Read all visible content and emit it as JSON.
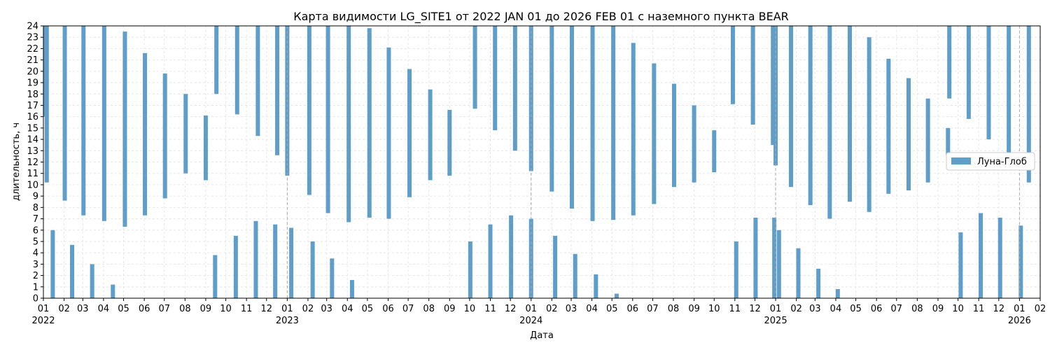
{
  "chart_data": {
    "type": "area",
    "title": "Карта видимости LG_SITE1 от 2022 JAN 01 до 2026 FEB 01 с наземного пункта BEAR",
    "xlabel": "Дата",
    "ylabel": "длительность, ч",
    "xlim": [
      "2022-01-01",
      "2026-02-01"
    ],
    "ylim": [
      0,
      24
    ],
    "y_ticks": [
      0,
      1,
      2,
      3,
      4,
      5,
      6,
      7,
      8,
      9,
      10,
      11,
      12,
      13,
      14,
      15,
      16,
      17,
      18,
      19,
      20,
      21,
      22,
      23,
      24
    ],
    "x_ticks": [
      {
        "date": "2022-01-01",
        "label": "01",
        "year": "2022"
      },
      {
        "date": "2022-02-01",
        "label": "02"
      },
      {
        "date": "2022-03-01",
        "label": "03"
      },
      {
        "date": "2022-04-01",
        "label": "04"
      },
      {
        "date": "2022-05-01",
        "label": "05"
      },
      {
        "date": "2022-06-01",
        "label": "06"
      },
      {
        "date": "2022-07-01",
        "label": "07"
      },
      {
        "date": "2022-08-01",
        "label": "08"
      },
      {
        "date": "2022-09-01",
        "label": "09"
      },
      {
        "date": "2022-10-01",
        "label": "10"
      },
      {
        "date": "2022-11-01",
        "label": "11"
      },
      {
        "date": "2022-12-01",
        "label": "12"
      },
      {
        "date": "2023-01-01",
        "label": "01",
        "year": "2023"
      },
      {
        "date": "2023-02-01",
        "label": "02"
      },
      {
        "date": "2023-03-01",
        "label": "03"
      },
      {
        "date": "2023-04-01",
        "label": "04"
      },
      {
        "date": "2023-05-01",
        "label": "05"
      },
      {
        "date": "2023-06-01",
        "label": "06"
      },
      {
        "date": "2023-07-01",
        "label": "07"
      },
      {
        "date": "2023-08-01",
        "label": "08"
      },
      {
        "date": "2023-09-01",
        "label": "09"
      },
      {
        "date": "2023-10-01",
        "label": "10"
      },
      {
        "date": "2023-11-01",
        "label": "11"
      },
      {
        "date": "2023-12-01",
        "label": "12"
      },
      {
        "date": "2024-01-01",
        "label": "01",
        "year": "2024"
      },
      {
        "date": "2024-02-01",
        "label": "02"
      },
      {
        "date": "2024-03-01",
        "label": "03"
      },
      {
        "date": "2024-04-01",
        "label": "04"
      },
      {
        "date": "2024-05-01",
        "label": "05"
      },
      {
        "date": "2024-06-01",
        "label": "06"
      },
      {
        "date": "2024-07-01",
        "label": "07"
      },
      {
        "date": "2024-08-01",
        "label": "08"
      },
      {
        "date": "2024-09-01",
        "label": "09"
      },
      {
        "date": "2024-10-01",
        "label": "10"
      },
      {
        "date": "2024-11-01",
        "label": "11"
      },
      {
        "date": "2024-12-01",
        "label": "12"
      },
      {
        "date": "2025-01-01",
        "label": "01",
        "year": "2025"
      },
      {
        "date": "2025-02-01",
        "label": "02"
      },
      {
        "date": "2025-03-01",
        "label": "03"
      },
      {
        "date": "2025-04-01",
        "label": "04"
      },
      {
        "date": "2025-05-01",
        "label": "05"
      },
      {
        "date": "2025-06-01",
        "label": "06"
      },
      {
        "date": "2025-07-01",
        "label": "07"
      },
      {
        "date": "2025-08-01",
        "label": "08"
      },
      {
        "date": "2025-09-01",
        "label": "09"
      },
      {
        "date": "2025-10-01",
        "label": "10"
      },
      {
        "date": "2025-11-01",
        "label": "11"
      },
      {
        "date": "2025-12-01",
        "label": "12"
      },
      {
        "date": "2026-01-01",
        "label": "01",
        "year": "2026"
      },
      {
        "date": "2026-02-01",
        "label": "02"
      }
    ],
    "grid": true,
    "legend": {
      "position": "center-right"
    },
    "series": [
      {
        "name": "Луна-Глоб",
        "color": "#5f9ec9",
        "visibility_windows_hours": [
          {
            "date": "2022-01-04",
            "start": 16.0,
            "end": 24
          },
          {
            "date": "2022-01-06",
            "start": 10.2,
            "end": 24
          },
          {
            "date": "2022-01-15",
            "start": 0,
            "end": 6.0
          },
          {
            "date": "2022-02-02",
            "start": 8.6,
            "end": 24
          },
          {
            "date": "2022-02-13",
            "start": 0,
            "end": 4.7
          },
          {
            "date": "2022-03-02",
            "start": 7.3,
            "end": 24
          },
          {
            "date": "2022-03-15",
            "start": 0,
            "end": 3.0
          },
          {
            "date": "2022-04-02",
            "start": 6.8,
            "end": 24
          },
          {
            "date": "2022-04-15",
            "start": 0,
            "end": 1.2
          },
          {
            "date": "2022-05-03",
            "start": 6.3,
            "end": 23.5
          },
          {
            "date": "2022-06-02",
            "start": 7.3,
            "end": 21.6
          },
          {
            "date": "2022-07-02",
            "start": 8.8,
            "end": 19.8
          },
          {
            "date": "2022-08-02",
            "start": 11.0,
            "end": 18.0
          },
          {
            "date": "2022-09-01",
            "start": 10.4,
            "end": 16.1
          },
          {
            "date": "2022-09-15",
            "start": 0,
            "end": 3.8
          },
          {
            "date": "2022-09-17",
            "start": 18.0,
            "end": 24
          },
          {
            "date": "2022-10-16",
            "start": 0,
            "end": 5.5
          },
          {
            "date": "2022-10-18",
            "start": 16.2,
            "end": 24
          },
          {
            "date": "2022-11-15",
            "start": 0,
            "end": 6.8
          },
          {
            "date": "2022-11-18",
            "start": 14.3,
            "end": 24
          },
          {
            "date": "2022-12-14",
            "start": 0,
            "end": 6.5
          },
          {
            "date": "2022-12-17",
            "start": 12.6,
            "end": 24
          },
          {
            "date": "2023-01-01",
            "start": 10.8,
            "end": 24
          },
          {
            "date": "2023-01-07",
            "start": 0,
            "end": 6.2
          },
          {
            "date": "2023-02-03",
            "start": 9.1,
            "end": 24
          },
          {
            "date": "2023-02-08",
            "start": 0,
            "end": 5.0
          },
          {
            "date": "2023-03-03",
            "start": 7.5,
            "end": 24
          },
          {
            "date": "2023-03-09",
            "start": 0,
            "end": 3.5
          },
          {
            "date": "2023-04-03",
            "start": 6.7,
            "end": 24
          },
          {
            "date": "2023-04-08",
            "start": 0,
            "end": 1.6
          },
          {
            "date": "2023-05-04",
            "start": 7.1,
            "end": 23.8
          },
          {
            "date": "2023-06-02",
            "start": 7.0,
            "end": 22.1
          },
          {
            "date": "2023-07-03",
            "start": 8.9,
            "end": 20.2
          },
          {
            "date": "2023-08-03",
            "start": 10.4,
            "end": 18.4
          },
          {
            "date": "2023-09-01",
            "start": 10.8,
            "end": 16.6
          },
          {
            "date": "2023-10-09",
            "start": 16.7,
            "end": 24
          },
          {
            "date": "2023-10-02",
            "start": 0,
            "end": 5.0
          },
          {
            "date": "2023-11-08",
            "start": 14.8,
            "end": 24
          },
          {
            "date": "2023-11-01",
            "start": 0,
            "end": 6.5
          },
          {
            "date": "2023-12-08",
            "start": 13.0,
            "end": 24
          },
          {
            "date": "2023-12-02",
            "start": 0,
            "end": 7.3
          },
          {
            "date": "2024-01-01",
            "start": 11.2,
            "end": 24
          },
          {
            "date": "2024-01-01",
            "start": 0,
            "end": 7.0
          },
          {
            "date": "2024-02-01",
            "start": 9.4,
            "end": 24
          },
          {
            "date": "2024-02-06",
            "start": 0,
            "end": 5.5
          },
          {
            "date": "2024-03-02",
            "start": 7.9,
            "end": 24
          },
          {
            "date": "2024-03-07",
            "start": 0,
            "end": 3.9
          },
          {
            "date": "2024-04-02",
            "start": 6.8,
            "end": 24
          },
          {
            "date": "2024-04-07",
            "start": 0,
            "end": 2.1
          },
          {
            "date": "2024-05-03",
            "start": 6.9,
            "end": 24
          },
          {
            "date": "2024-05-08",
            "start": 0,
            "end": 0.4
          },
          {
            "date": "2024-06-02",
            "start": 7.3,
            "end": 22.5
          },
          {
            "date": "2024-07-03",
            "start": 8.3,
            "end": 20.7
          },
          {
            "date": "2024-08-02",
            "start": 9.8,
            "end": 18.9
          },
          {
            "date": "2024-09-01",
            "start": 10.2,
            "end": 17.0
          },
          {
            "date": "2024-10-01",
            "start": 11.1,
            "end": 14.8
          },
          {
            "date": "2024-10-29",
            "start": 17.1,
            "end": 24
          },
          {
            "date": "2024-11-03",
            "start": 0,
            "end": 5.0
          },
          {
            "date": "2024-11-28",
            "start": 15.3,
            "end": 24
          },
          {
            "date": "2024-12-02",
            "start": 0,
            "end": 7.1
          },
          {
            "date": "2024-12-28",
            "start": 13.5,
            "end": 24
          },
          {
            "date": "2024-12-30",
            "start": 0,
            "end": 7.1
          },
          {
            "date": "2025-01-01",
            "start": 11.7,
            "end": 24
          },
          {
            "date": "2025-01-06",
            "start": 0,
            "end": 6.0
          },
          {
            "date": "2025-01-24",
            "start": 9.8,
            "end": 24
          },
          {
            "date": "2025-02-04",
            "start": 0,
            "end": 4.4
          },
          {
            "date": "2025-02-22",
            "start": 8.2,
            "end": 24
          },
          {
            "date": "2025-03-06",
            "start": 0,
            "end": 2.6
          },
          {
            "date": "2025-03-23",
            "start": 7.0,
            "end": 24
          },
          {
            "date": "2025-04-04",
            "start": 0,
            "end": 0.8
          },
          {
            "date": "2025-04-22",
            "start": 8.5,
            "end": 24
          },
          {
            "date": "2025-05-21",
            "start": 7.6,
            "end": 23.0
          },
          {
            "date": "2025-06-19",
            "start": 9.2,
            "end": 21.1
          },
          {
            "date": "2025-07-19",
            "start": 9.5,
            "end": 19.4
          },
          {
            "date": "2025-08-17",
            "start": 10.2,
            "end": 17.6
          },
          {
            "date": "2025-09-16",
            "start": 12.6,
            "end": 15.0
          },
          {
            "date": "2025-09-18",
            "start": 17.6,
            "end": 24
          },
          {
            "date": "2025-10-05",
            "start": 0,
            "end": 5.8
          },
          {
            "date": "2025-10-17",
            "start": 15.8,
            "end": 24
          },
          {
            "date": "2025-11-04",
            "start": 0,
            "end": 7.5
          },
          {
            "date": "2025-11-16",
            "start": 14.0,
            "end": 24
          },
          {
            "date": "2025-12-03",
            "start": 0,
            "end": 7.1
          },
          {
            "date": "2025-12-16",
            "start": 12.2,
            "end": 24
          },
          {
            "date": "2026-01-03",
            "start": 0,
            "end": 6.4
          },
          {
            "date": "2026-01-15",
            "start": 10.2,
            "end": 24
          }
        ]
      }
    ]
  }
}
